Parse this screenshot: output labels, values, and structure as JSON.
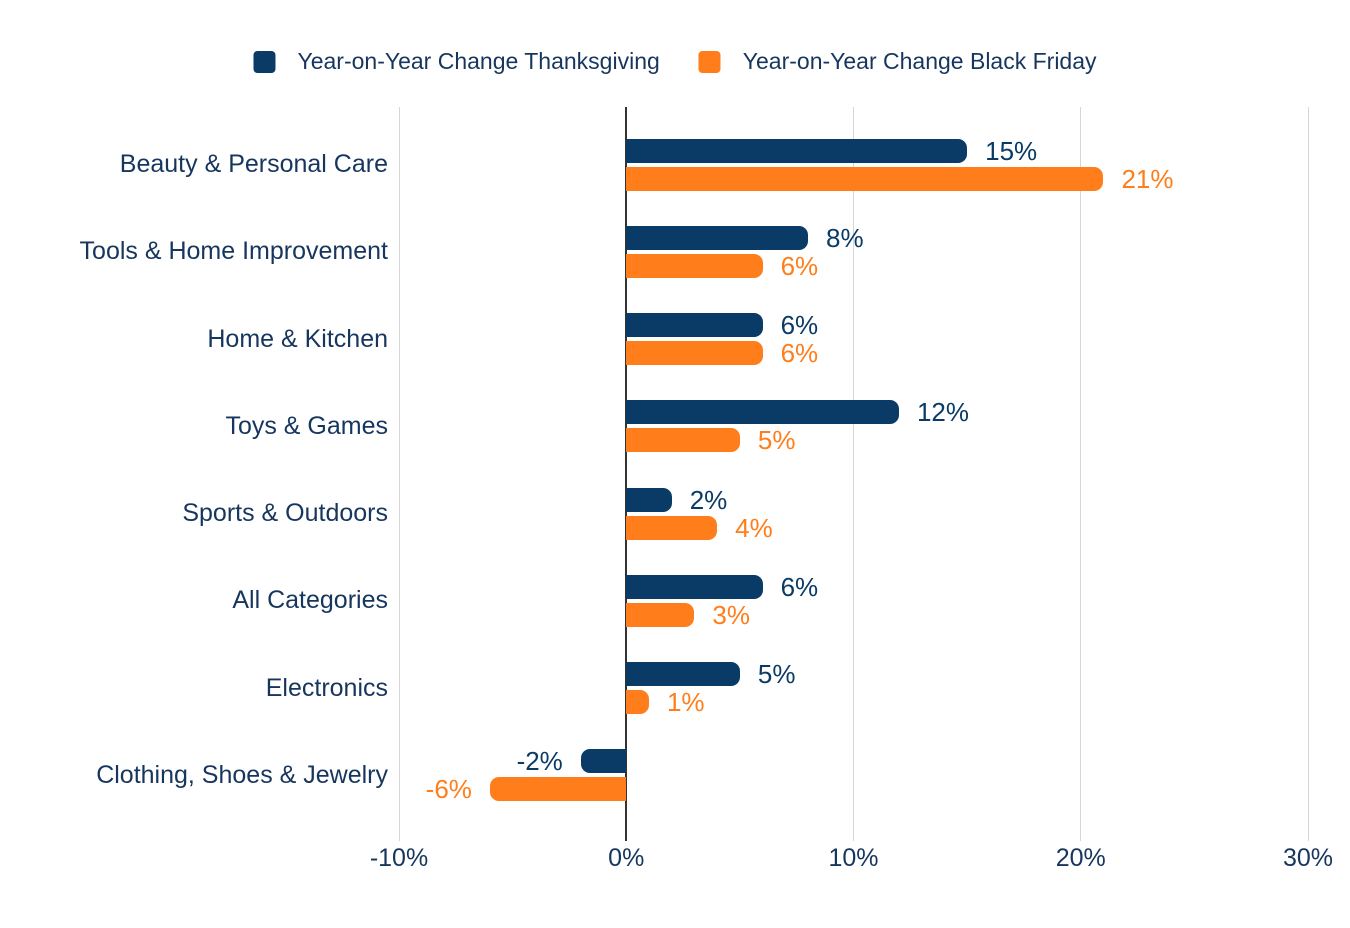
{
  "colors": {
    "thanksgiving": "#0A3A66",
    "black_friday": "#FF7E1B",
    "text": "#17365D",
    "gridline": "#D6D6D6",
    "zero_line": "#333333",
    "background": "#FFFFFF"
  },
  "chart_data": {
    "type": "bar",
    "orientation": "horizontal",
    "title": "",
    "xlabel": "",
    "ylabel": "",
    "legend_position": "top",
    "grid": true,
    "value_suffix": "%",
    "categories": [
      "Beauty & Personal Care",
      "Tools & Home Improvement",
      "Home & Kitchen",
      "Toys & Games",
      "Sports & Outdoors",
      "All Categories",
      "Electronics",
      "Clothing, Shoes & Jewelry"
    ],
    "series": [
      {
        "name": "Year-on-Year Change Thanksgiving",
        "color": "#0A3A66",
        "values": [
          15,
          8,
          6,
          12,
          2,
          6,
          5,
          -2
        ],
        "labels": [
          "15%",
          "8%",
          "6%",
          "12%",
          "2%",
          "6%",
          "5%",
          "-2%"
        ]
      },
      {
        "name": "Year-on-Year Change Black Friday",
        "color": "#FF7E1B",
        "values": [
          21,
          6,
          6,
          5,
          4,
          3,
          1,
          -6
        ],
        "labels": [
          "21%",
          "6%",
          "6%",
          "5%",
          "4%",
          "3%",
          "1%",
          "-6%"
        ]
      }
    ],
    "x_axis": {
      "range": [
        -10,
        30
      ],
      "ticks": [
        {
          "label": "-10%",
          "value": -10
        },
        {
          "label": "0%",
          "value": 0
        },
        {
          "label": "10%",
          "value": 10
        },
        {
          "label": "20%",
          "value": 20
        },
        {
          "label": "30%",
          "value": 30
        }
      ]
    }
  }
}
